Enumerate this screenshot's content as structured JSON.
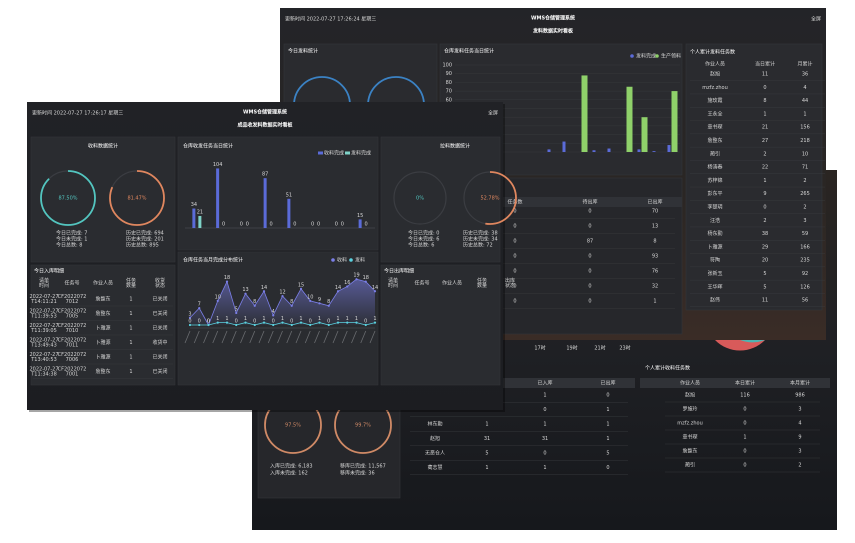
{
  "back": {
    "hour_labels": [
      "17时",
      "19时",
      "21时",
      "23时"
    ],
    "gauges": [
      {
        "value": 97.5,
        "label": "97.5%"
      },
      {
        "value": 99.7,
        "label": "99.7%"
      }
    ],
    "notes_left": [
      "入库已完成: 6,183",
      "入库未完成: 162"
    ],
    "notes_right": [
      "移库已完成: 11,567",
      "移库未完成: 36"
    ],
    "middle_table": {
      "header": [
        "已入库",
        "已出库"
      ],
      "rows": [
        [
          "1",
          "0"
        ],
        [
          "0",
          "1"
        ],
        [
          "林东勤",
          "1",
          "1",
          "1"
        ],
        [
          "赵旭",
          "31",
          "31",
          "1"
        ],
        [
          "无恶仓人",
          "5",
          "0",
          "5"
        ],
        [
          "蔺志慧",
          "1",
          "1",
          "0"
        ]
      ]
    },
    "person_table": {
      "title": "个人累计收料任务数",
      "header": [
        "作业人员",
        "本日累计",
        "本月累计"
      ],
      "rows": [
        [
          "赵旭",
          "116",
          "986"
        ],
        [
          "罗施玲",
          "0",
          "3"
        ],
        [
          "mzfz.zhou",
          "0",
          "4"
        ],
        [
          "章书琛",
          "1",
          "9"
        ],
        [
          "詹整东",
          "0",
          "3"
        ],
        [
          "蔺引",
          "0",
          "2"
        ]
      ]
    }
  },
  "top": {
    "header": {
      "time": "更新时间 2022-07-27 17:26:24 星期三",
      "title": "WMS仓储管理系统",
      "subtitle": "发料数据实时看板",
      "fullscreen": "全屏"
    },
    "today_title": "今日发料统计",
    "chart": {
      "title": "仓库发料任务当日统计",
      "ylim": [
        0,
        100
      ],
      "yticks": [
        0,
        10,
        20,
        30,
        40,
        50,
        60,
        70,
        80,
        90,
        100
      ],
      "series": [
        {
          "name": "发料完成",
          "color": "#5b6bd8",
          "values": [
            0,
            0,
            0,
            0,
            0,
            0,
            3,
            12,
            0,
            2,
            4,
            0,
            3,
            1,
            8
          ]
        },
        {
          "name": "生产领料",
          "color": "#8fd16a",
          "values": [
            0,
            0,
            0,
            0,
            0,
            0,
            0,
            0,
            88,
            0,
            0,
            75,
            40,
            0,
            70
          ]
        }
      ]
    },
    "task_table": {
      "header": [
        "任务数",
        "待出库",
        "已出库"
      ],
      "rows": [
        [
          "0",
          "0",
          "70"
        ],
        [
          "0",
          "0",
          "13"
        ],
        [
          "0",
          "87",
          "8"
        ],
        [
          "0",
          "0",
          "93"
        ],
        [
          "0",
          "0",
          "76"
        ],
        [
          "0",
          "0",
          "32"
        ],
        [
          "0",
          "0",
          "1"
        ]
      ]
    },
    "person_table": {
      "title": "个人累计发料任务数",
      "header": [
        "作业人员",
        "当日累计",
        "月累计"
      ],
      "rows": [
        [
          "赵旭",
          "11",
          "36"
        ],
        [
          "mzfz.zhou",
          "0",
          "4"
        ],
        [
          "施玫霞",
          "8",
          "44"
        ],
        [
          "王永全",
          "1",
          "1"
        ],
        [
          "章书琛",
          "21",
          "156"
        ],
        [
          "詹整东",
          "27",
          "218"
        ],
        [
          "蔺引",
          "2",
          "10"
        ],
        [
          "杨涛春",
          "22",
          "71"
        ],
        [
          "苏梓锦",
          "1",
          "2"
        ],
        [
          "彭东平",
          "9",
          "265"
        ],
        [
          "李楚玥",
          "0",
          "2"
        ],
        [
          "汪浩",
          "2",
          "3"
        ],
        [
          "杨东勤",
          "38",
          "59"
        ],
        [
          "卜雅源",
          "29",
          "166"
        ],
        [
          "符陶",
          "20",
          "235"
        ],
        [
          "张新玉",
          "5",
          "92"
        ],
        [
          "王华晖",
          "5",
          "126"
        ],
        [
          "赵伟",
          "11",
          "56"
        ]
      ]
    }
  },
  "front": {
    "header": {
      "time": "更新时间 2022-07-27 17:26:17 星期三",
      "title": "WMS仓储管理系统",
      "subtitle": "成品收发料数据实时看板",
      "fullscreen": "全屏"
    },
    "receive": {
      "title": "收料数据统计",
      "gauges": [
        {
          "value": 87.5,
          "label": "87.50%"
        },
        {
          "value": 81.47,
          "label": "81.47%"
        }
      ],
      "notes_left": [
        "今日已完成: 7",
        "今日未完成: 1",
        "今日总数: 8"
      ],
      "notes_right": [
        "历史已完成: 694",
        "历史未完成: 201",
        "历史总数: 895"
      ]
    },
    "task_chart": {
      "title": "仓库收发任务当日统计",
      "ylim": [
        0,
        110
      ],
      "series": [
        {
          "name": "收料完成",
          "color": "#5b6bd8",
          "values": [
            34,
            104,
            0,
            87,
            51,
            0,
            0,
            15
          ]
        },
        {
          "name": "发料完成",
          "color": "#7fd3c8",
          "values": [
            21,
            0,
            0,
            0,
            0,
            0,
            0,
            0
          ]
        }
      ]
    },
    "monthly_chart": {
      "title": "仓库任务当月完成分布统计",
      "ylim": [
        0,
        22
      ],
      "series": [
        {
          "name": "收料",
          "color": "#7b7fe8",
          "values": [
            3,
            7,
            0,
            10,
            18,
            5,
            13,
            8,
            14,
            4,
            12,
            8,
            15,
            10,
            9,
            8,
            14,
            16,
            19,
            18,
            14
          ]
        },
        {
          "name": "发料",
          "color": "#5ad2e0",
          "values": [
            0,
            0,
            0,
            1,
            1,
            0,
            1,
            0,
            1,
            0,
            1,
            0,
            1,
            0,
            1,
            0,
            1,
            1,
            1,
            0,
            1
          ]
        }
      ]
    },
    "pull": {
      "title": "拉料数据统计",
      "gauges": [
        {
          "value": 0,
          "label": "0%"
        },
        {
          "value": 52.78,
          "label": "52.78%"
        }
      ],
      "notes_left": [
        "今日已完成: 0",
        "今日未完成: 6",
        "今日总数: 6"
      ],
      "notes_right": [
        "历史已完成: 38",
        "历史未完成: 34",
        "历史总数: 72"
      ]
    },
    "inbound": {
      "title": "今日入库明细",
      "header": [
        [
          "请单",
          "时间"
        ],
        [
          "任务号"
        ],
        [
          "作业人员"
        ],
        [
          "任务",
          "数量"
        ],
        [
          "收货",
          "状态"
        ]
      ],
      "rows": [
        [
          [
            "2022-07-27",
            "T14:11:21"
          ],
          [
            "CF2022072",
            "7012"
          ],
          [
            "詹整东"
          ],
          [
            "1"
          ],
          [
            "已关闭"
          ]
        ],
        [
          [
            "2022-07-27",
            "T11:39:53"
          ],
          [
            "CF2022072",
            "7005"
          ],
          [
            "詹整东"
          ],
          [
            "1"
          ],
          [
            "已关闭"
          ]
        ],
        [
          [
            "2022-07-27",
            "T11:39:05"
          ],
          [
            "CF2022072",
            "7010"
          ],
          [
            "卜雅源"
          ],
          [
            "1"
          ],
          [
            "已关闭"
          ]
        ],
        [
          [
            "2022-07-27",
            "T13:49:43"
          ],
          [
            "CF2022072",
            "7011"
          ],
          [
            "卜雅源"
          ],
          [
            "1"
          ],
          [
            "收货中"
          ]
        ],
        [
          [
            "2022-07-27",
            "T13:40:53"
          ],
          [
            "CF2022072",
            "7006"
          ],
          [
            "卜雅源"
          ],
          [
            "1"
          ],
          [
            "已关闭"
          ]
        ],
        [
          [
            "2022-07-27",
            "T11:34:38"
          ],
          [
            "CF2022072",
            "7001"
          ],
          [
            "詹整东"
          ],
          [
            "1"
          ],
          [
            "已关闭"
          ]
        ]
      ]
    },
    "outbound": {
      "title": "今日出库明细",
      "header": [
        [
          "请单",
          "时间"
        ],
        [
          "任务号"
        ],
        [
          "作业人员"
        ],
        [
          "任务",
          "数量"
        ],
        [
          "出库",
          "状态"
        ]
      ]
    }
  }
}
